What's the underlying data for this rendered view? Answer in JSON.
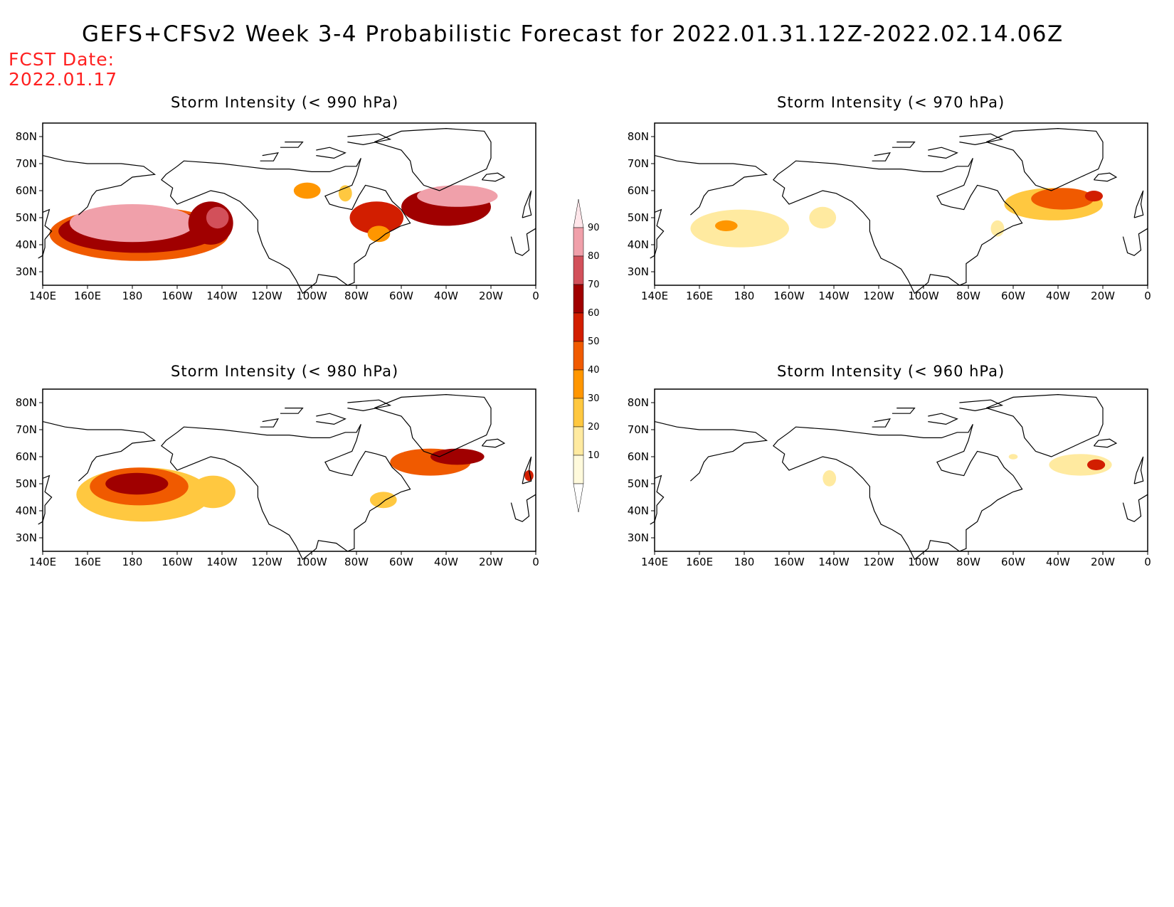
{
  "title": "GEFS+CFSv2 Week 3-4 Probabilistic Forecast for 2022.01.31.12Z-2022.02.14.06Z",
  "forecast_date": {
    "label": "FCST Date:",
    "value": "2022.01.17"
  },
  "x_tick_labels": [
    "140E",
    "160E",
    "180",
    "160W",
    "140W",
    "120W",
    "100W",
    "80W",
    "60W",
    "40W",
    "20W",
    "0"
  ],
  "y_tick_labels": [
    "80N",
    "70N",
    "60N",
    "50N",
    "40N",
    "30N"
  ],
  "panels": [
    {
      "id": "p990",
      "title": "Storm Intensity (< 990 hPa)"
    },
    {
      "id": "p970",
      "title": "Storm Intensity (< 970 hPa)"
    },
    {
      "id": "p980",
      "title": "Storm Intensity (< 980 hPa)"
    },
    {
      "id": "p960",
      "title": "Storm Intensity (< 960 hPa)"
    }
  ],
  "colorbar": {
    "levels": [
      "10",
      "20",
      "30",
      "40",
      "50",
      "60",
      "70",
      "80",
      "90"
    ],
    "colors": [
      "#fffadc",
      "#ffeaa0",
      "#ffc840",
      "#ff9600",
      "#f05a00",
      "#d21e00",
      "#a00000",
      "#d2505a",
      "#f0a0aa",
      "#ffe6ea"
    ]
  },
  "land_outline_color": "#000000"
}
